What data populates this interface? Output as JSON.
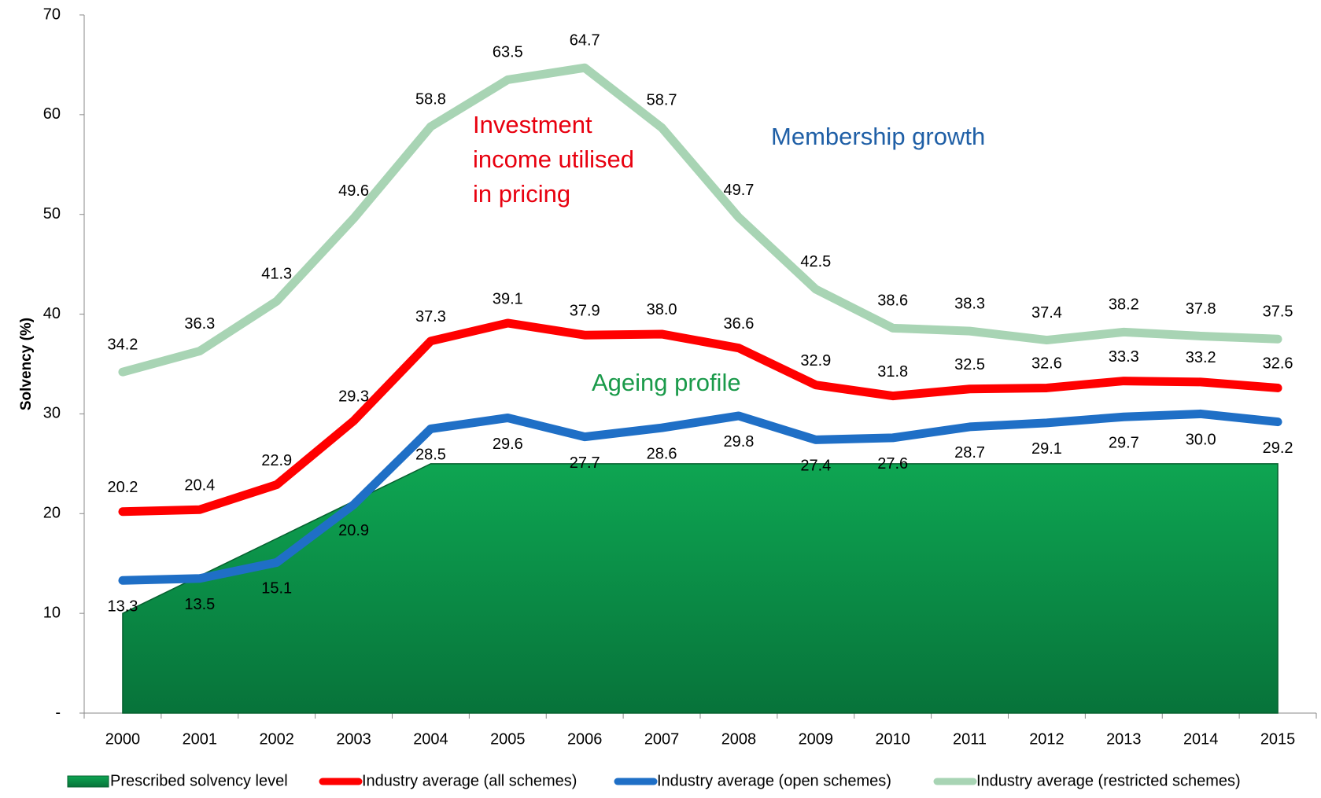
{
  "chart_data": {
    "type": "line",
    "y_label": "Solvency (%)",
    "categories": [
      "2000",
      "2001",
      "2002",
      "2003",
      "2004",
      "2005",
      "2006",
      "2007",
      "2008",
      "2009",
      "2010",
      "2011",
      "2012",
      "2013",
      "2014",
      "2015"
    ],
    "ylim": [
      0,
      70
    ],
    "yticks": [
      {
        "value": 0,
        "label": "-"
      },
      10,
      20,
      30,
      40,
      50,
      60,
      70
    ],
    "grid": false,
    "legend": "bottom",
    "series": [
      {
        "name": "Prescribed solvency level",
        "type": "area",
        "color": "#0b9b4c",
        "values": [
          10,
          13.75,
          17.5,
          21.25,
          25,
          25,
          25,
          25,
          25,
          25,
          25,
          25,
          25,
          25,
          25,
          25
        ]
      },
      {
        "name": "Industry average (all schemes)",
        "color": "#ff0000",
        "values": [
          20.2,
          20.4,
          22.9,
          29.3,
          37.3,
          39.1,
          37.9,
          38.0,
          36.6,
          32.9,
          31.8,
          32.5,
          32.6,
          33.3,
          33.2,
          32.6
        ],
        "value_labels": [
          "20.2",
          "20.4",
          "22.9",
          "29.3",
          "37.3",
          "39.1",
          "37.9",
          "38.0",
          "36.6",
          "32.9",
          "31.8",
          "32.5",
          "32.6",
          "33.3",
          "33.2",
          "32.6"
        ]
      },
      {
        "name": "Industry average (open schemes)",
        "color": "#1f6fc6",
        "values": [
          13.3,
          13.5,
          15.1,
          20.9,
          28.5,
          29.6,
          27.7,
          28.6,
          29.8,
          27.4,
          27.6,
          28.7,
          29.1,
          29.7,
          30.0,
          29.2
        ],
        "value_labels": [
          "13.3",
          "13.5",
          "15.1",
          "20.9",
          "28.5",
          "29.6",
          "27.7",
          "28.6",
          "29.8",
          "27.4",
          "27.6",
          "28.7",
          "29.1",
          "29.7",
          "30.0",
          "29.2"
        ]
      },
      {
        "name": "Industry average (restricted schemes)",
        "color": "#a8d4b4",
        "values": [
          34.2,
          36.3,
          41.3,
          49.6,
          58.8,
          63.5,
          64.7,
          58.7,
          49.7,
          42.5,
          38.6,
          38.3,
          37.4,
          38.2,
          37.8,
          37.5
        ],
        "value_labels": [
          "34.2",
          "36.3",
          "41.3",
          "49.6",
          "58.8",
          "63.5",
          "64.7",
          "58.7",
          "49.7",
          "42.5",
          "38.6",
          "38.3",
          "37.4",
          "38.2",
          "37.8",
          "37.5"
        ]
      }
    ],
    "annotations": [
      {
        "text": [
          "Investment",
          "income utilised",
          "in pricing"
        ],
        "color": "#e8000f"
      },
      {
        "text": [
          "Membership growth"
        ],
        "color": "#1f5fa6"
      },
      {
        "text": [
          "Ageing profile"
        ],
        "color": "#1a9a4a"
      }
    ]
  }
}
